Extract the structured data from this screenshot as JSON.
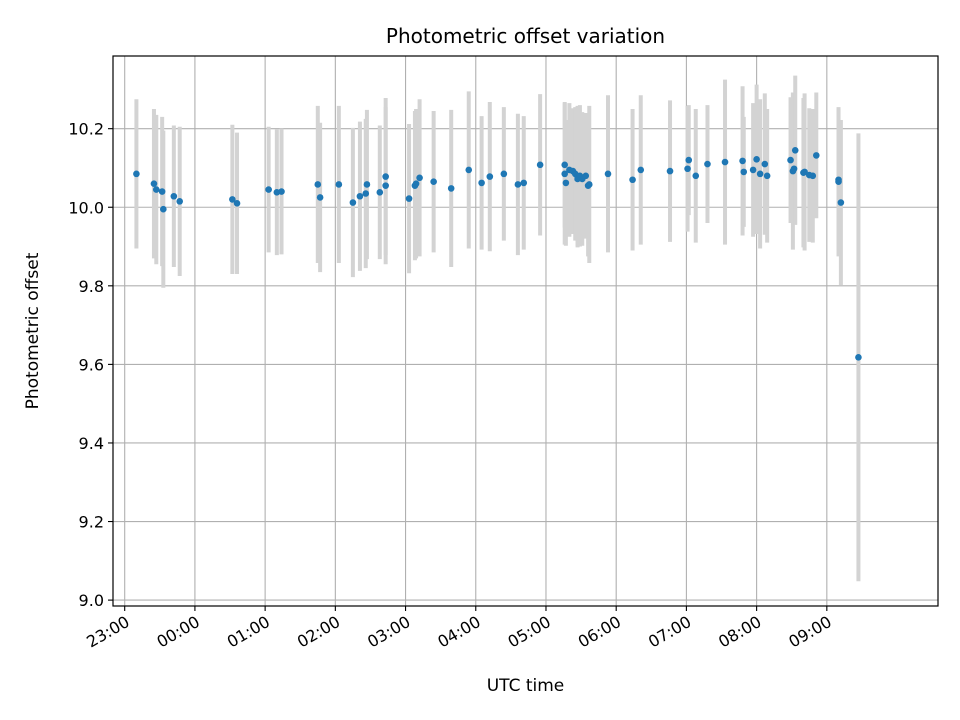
{
  "chart_data": {
    "type": "scatter",
    "title": "Photometric offset variation",
    "xlabel": "UTC time",
    "ylabel": "Photometric offset",
    "grid": true,
    "xlim": [
      "22:50",
      "10:35"
    ],
    "ylim": [
      8.985,
      10.385
    ],
    "x_ticks": [
      "23:00",
      "00:00",
      "01:00",
      "02:00",
      "03:00",
      "04:00",
      "05:00",
      "06:00",
      "07:00",
      "08:00",
      "09:00"
    ],
    "y_ticks": [
      "9.0",
      "9.2",
      "9.4",
      "9.6",
      "9.8",
      "10.0",
      "10.2"
    ],
    "colors": {
      "points": "#1f77b4",
      "errorbars": "#d3d3d3",
      "grid": "#b0b0b0"
    },
    "series": [
      {
        "x": [
          "23:10",
          "23:25",
          "23:27",
          "23:32",
          "23:33",
          "23:42",
          "23:47",
          "00:32",
          "00:36",
          "01:03",
          "01:10",
          "01:14",
          "01:45",
          "01:47",
          "02:03",
          "02:15",
          "02:21",
          "02:26",
          "02:27",
          "02:38",
          "02:43",
          "02:43",
          "03:03",
          "03:08",
          "03:09",
          "03:12",
          "03:24",
          "03:39",
          "03:54",
          "04:05",
          "04:12",
          "04:24",
          "04:36",
          "04:41",
          "04:55",
          "05:16",
          "05:16",
          "05:17",
          "05:20",
          "05:23",
          "05:25",
          "05:27",
          "05:27",
          "05:29",
          "05:31",
          "05:34",
          "05:36",
          "05:37",
          "05:53",
          "06:14",
          "06:21",
          "06:46",
          "07:01",
          "07:02",
          "07:08",
          "07:18",
          "07:33",
          "07:48",
          "07:49",
          "07:57",
          "08:00",
          "08:03",
          "08:07",
          "08:09",
          "08:29",
          "08:31",
          "08:32",
          "08:33",
          "08:40",
          "08:41",
          "08:45",
          "08:48",
          "08:51",
          "09:10",
          "09:10",
          "09:12",
          "09:27"
        ],
        "y": [
          10.085,
          10.06,
          10.045,
          10.04,
          9.995,
          10.028,
          10.015,
          10.02,
          10.01,
          10.045,
          10.038,
          10.04,
          10.058,
          10.025,
          10.058,
          10.012,
          10.028,
          10.035,
          10.058,
          10.038,
          10.078,
          10.055,
          10.022,
          10.055,
          10.06,
          10.075,
          10.065,
          10.048,
          10.095,
          10.062,
          10.078,
          10.085,
          10.058,
          10.062,
          10.108,
          10.085,
          10.108,
          10.062,
          10.095,
          10.092,
          10.085,
          10.078,
          10.072,
          10.08,
          10.072,
          10.08,
          10.055,
          10.058,
          10.085,
          10.07,
          10.095,
          10.092,
          10.098,
          10.12,
          10.08,
          10.11,
          10.115,
          10.118,
          10.09,
          10.095,
          10.122,
          10.085,
          10.11,
          10.08,
          10.12,
          10.092,
          10.098,
          10.145,
          10.088,
          10.09,
          10.082,
          10.08,
          10.132,
          10.07,
          10.065,
          10.012,
          9.618
        ],
        "err": [
          0.19,
          0.19,
          0.19,
          0.19,
          0.2,
          0.18,
          0.19,
          0.19,
          0.18,
          0.16,
          0.16,
          0.16,
          0.2,
          0.19,
          0.2,
          0.19,
          0.19,
          0.19,
          0.19,
          0.17,
          0.2,
          0.2,
          0.19,
          0.19,
          0.19,
          0.2,
          0.18,
          0.2,
          0.2,
          0.17,
          0.19,
          0.17,
          0.18,
          0.17,
          0.18,
          0.18,
          0.16,
          0.16,
          0.17,
          0.16,
          0.17,
          0.18,
          0.17,
          0.18,
          0.17,
          0.16,
          0.18,
          0.2,
          0.2,
          0.18,
          0.19,
          0.18,
          0.16,
          0.14,
          0.17,
          0.15,
          0.21,
          0.19,
          0.14,
          0.17,
          0.19,
          0.19,
          0.18,
          0.17,
          0.16,
          0.2,
          0.14,
          0.19,
          0.19,
          0.2,
          0.17,
          0.17,
          0.16,
          0.18,
          0.19,
          0.21,
          0.57
        ]
      }
    ]
  }
}
